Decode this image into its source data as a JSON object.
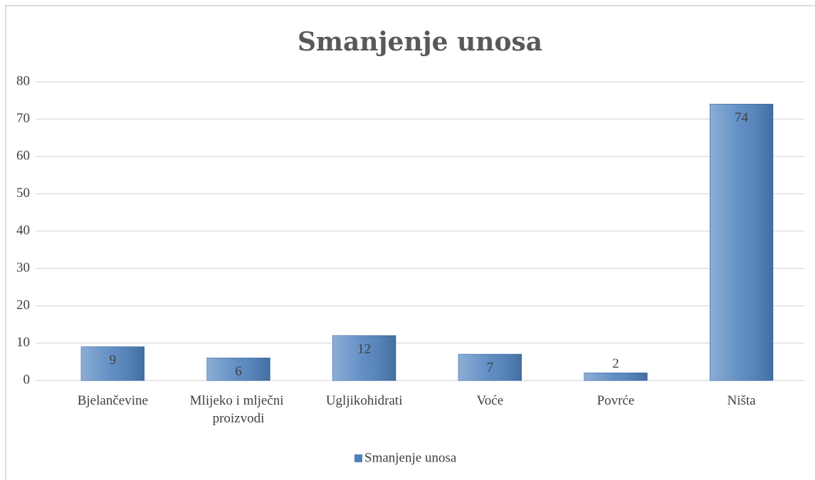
{
  "chart_data": {
    "type": "bar",
    "title": "Smanjenje unosa",
    "categories": [
      "Bjelančevine",
      "Mlijeko i mlječni proizvodi",
      "Ugljikohidrati",
      "Voće",
      "Povrće",
      "Ništa"
    ],
    "series": [
      {
        "name": "Smanjenje unosa",
        "color": "#4f81bd",
        "values": [
          9,
          6,
          12,
          7,
          2,
          74
        ]
      }
    ],
    "ylim": [
      0,
      80
    ],
    "yticks": [
      0,
      10,
      20,
      30,
      40,
      50,
      60,
      70,
      80
    ],
    "grid": true,
    "legend": "bottom"
  }
}
